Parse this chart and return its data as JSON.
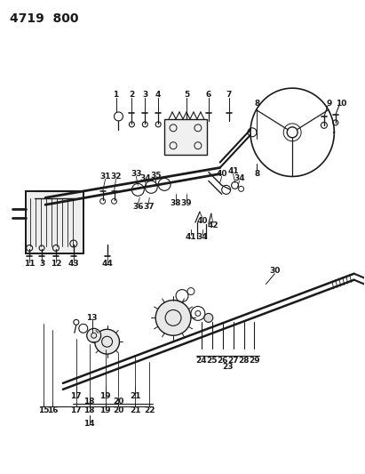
{
  "title": "4719  800",
  "bg_color": "#ffffff",
  "line_color": "#1a1a1a",
  "title_fontsize": 10,
  "label_fontsize": 6.5,
  "fig_width": 4.11,
  "fig_height": 5.33
}
